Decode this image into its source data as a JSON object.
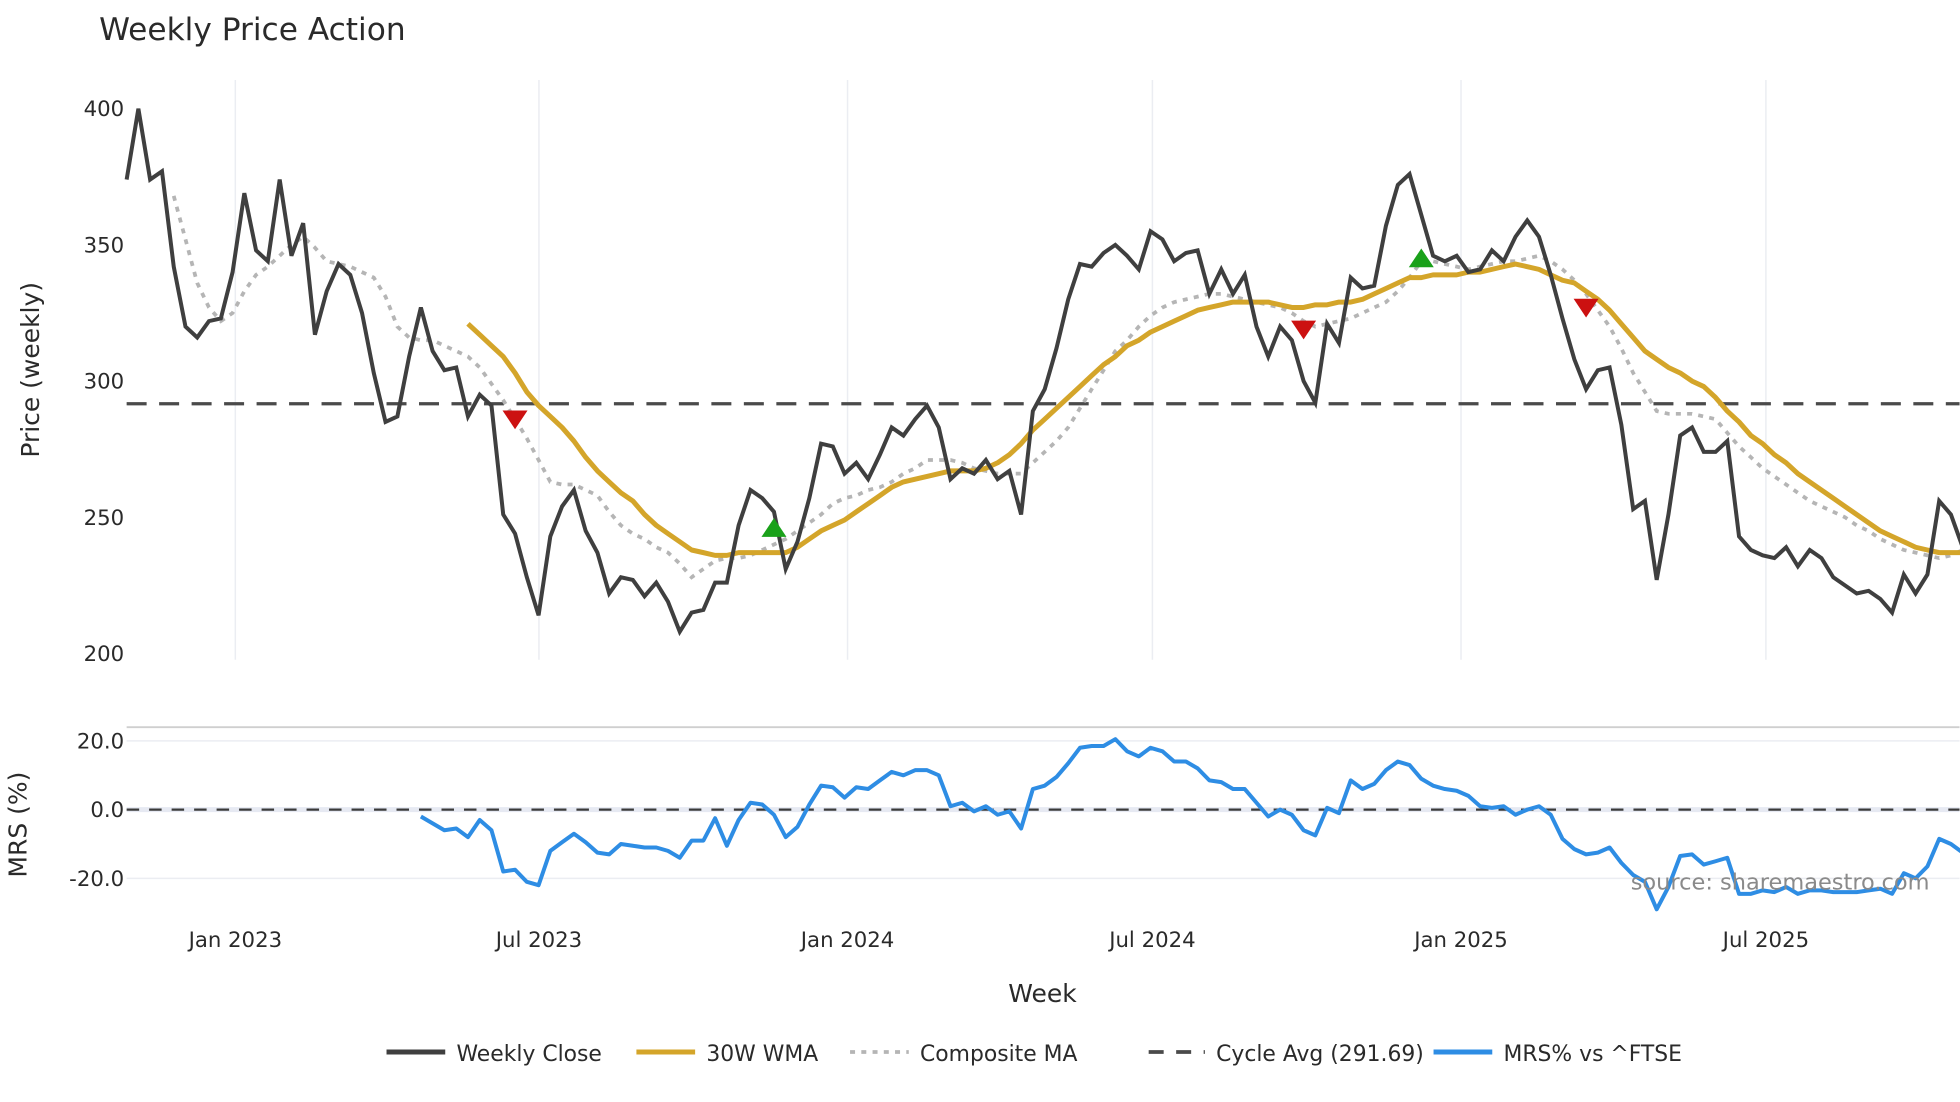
{
  "title": "Weekly Price Action",
  "watermark": "source: sharemaestro.com",
  "colors": {
    "weekly_close": "#3f3f3f",
    "wma": "#d4a52a",
    "composite": "#b5b5b5",
    "cycle_avg": "#4a4a4a",
    "mrs": "#2e8de4",
    "marker_up": "#1aa11a",
    "marker_down": "#cc1111",
    "grid": "#ebedf2"
  },
  "legend": [
    {
      "key": "weekly_close",
      "label": "Weekly Close",
      "style": "solid"
    },
    {
      "key": "wma",
      "label": "30W WMA",
      "style": "solid"
    },
    {
      "key": "composite",
      "label": "Composite MA",
      "style": "dot"
    },
    {
      "key": "cycle_avg",
      "label": "Cycle Avg (291.69)",
      "style": "dash"
    },
    {
      "key": "mrs",
      "label": "MRS% vs ^FTSE",
      "style": "solid"
    }
  ],
  "chart_data": [
    {
      "type": "line",
      "title": "Weekly Price Action",
      "xlabel": "Week",
      "ylabel": "Price (weekly)",
      "ylim": [
        200,
        400
      ],
      "yticks": [
        200,
        250,
        300,
        350,
        400
      ],
      "xticks": [
        "Jan 2023",
        "Jul 2023",
        "Jan 2024",
        "Jul 2024",
        "Jan 2025",
        "Jul 2025"
      ],
      "x_start": "2022-10-31",
      "x_step": "1 week",
      "cycle_avg": 291.69,
      "series": [
        {
          "name": "Weekly Close",
          "start_index": 0,
          "values": [
            374,
            400,
            374,
            377,
            342,
            320,
            316,
            322,
            323,
            340,
            369,
            348,
            344,
            374,
            346,
            358,
            317,
            333,
            343,
            339,
            325,
            303,
            285,
            287,
            309,
            327,
            311,
            304,
            305,
            287,
            295,
            291,
            251,
            244,
            228,
            214,
            243,
            254,
            260,
            245,
            237,
            222,
            228,
            227,
            221,
            226,
            219,
            208,
            215,
            216,
            226,
            226,
            247,
            260,
            257,
            252,
            231,
            241,
            257,
            277,
            276,
            266,
            270,
            264,
            273,
            283,
            280,
            286,
            291,
            283,
            264,
            268,
            266,
            271,
            264,
            267,
            251,
            289,
            297,
            312,
            330,
            343,
            342,
            347,
            350,
            346,
            341,
            355,
            352,
            344,
            347,
            348,
            332,
            341,
            332,
            339,
            320,
            309,
            320,
            315,
            300,
            292,
            321,
            314,
            338,
            334,
            335,
            357,
            372,
            376,
            361,
            346,
            344,
            346,
            340,
            341,
            348,
            344,
            353,
            359,
            353,
            339,
            323,
            308,
            297,
            304,
            305,
            284,
            253,
            256,
            227,
            251,
            280,
            283,
            274,
            274,
            278,
            243,
            238,
            236,
            235,
            239,
            232,
            238,
            235,
            228,
            225,
            222,
            223,
            220,
            215,
            229,
            222,
            229,
            256,
            251,
            239,
            245
          ]
        },
        {
          "name": "30W WMA",
          "start_index": 29,
          "values": [
            321,
            317,
            313,
            309,
            303,
            296,
            291,
            287,
            283,
            278,
            272,
            267,
            263,
            259,
            256,
            251,
            247,
            244,
            241,
            238,
            237,
            236,
            236,
            237,
            237,
            237,
            237,
            237,
            239,
            242,
            245,
            247,
            249,
            252,
            255,
            258,
            261,
            263,
            264,
            265,
            266,
            267,
            267,
            267,
            268,
            270,
            273,
            277,
            282,
            286,
            290,
            294,
            298,
            302,
            306,
            309,
            313,
            315,
            318,
            320,
            322,
            324,
            326,
            327,
            328,
            329,
            329,
            329,
            329,
            328,
            327,
            327,
            328,
            328,
            329,
            329,
            330,
            332,
            334,
            336,
            338,
            338,
            339,
            339,
            339,
            340,
            340,
            341,
            342,
            343,
            342,
            341,
            339,
            337,
            336,
            333,
            330,
            326,
            321,
            316,
            311,
            308,
            305,
            303,
            300,
            298,
            294,
            289,
            285,
            280,
            277,
            273,
            270,
            266,
            263,
            260,
            257,
            254,
            251,
            248,
            245,
            243,
            241,
            239,
            238,
            237,
            237,
            237
          ]
        },
        {
          "name": "Composite MA",
          "start_index": 4,
          "values": [
            368,
            352,
            336,
            327,
            322,
            325,
            333,
            339,
            342,
            346,
            350,
            353,
            349,
            344,
            343,
            342,
            340,
            338,
            331,
            320,
            316,
            315,
            315,
            313,
            311,
            309,
            305,
            299,
            293,
            286,
            279,
            271,
            263,
            262,
            262,
            260,
            258,
            252,
            247,
            244,
            242,
            239,
            237,
            233,
            228,
            231,
            234,
            235,
            235,
            236,
            238,
            240,
            242,
            245,
            248,
            251,
            255,
            257,
            258,
            260,
            261,
            263,
            266,
            268,
            271,
            271,
            271,
            270,
            268,
            267,
            266,
            266,
            266,
            270,
            274,
            278,
            283,
            290,
            297,
            304,
            311,
            315,
            320,
            324,
            327,
            329,
            330,
            331,
            332,
            332,
            331,
            330,
            329,
            328,
            327,
            325,
            322,
            320,
            321,
            322,
            323,
            325,
            327,
            329,
            333,
            338,
            344,
            344,
            343,
            342,
            341,
            342,
            343,
            344,
            344,
            345,
            346,
            344,
            341,
            337,
            332,
            326,
            320,
            312,
            303,
            296,
            289,
            288,
            288,
            288,
            287,
            286,
            281,
            276,
            272,
            268,
            265,
            262,
            259,
            256,
            254,
            252,
            250,
            247,
            245,
            242,
            240,
            238,
            237,
            236,
            235,
            236,
            238,
            240
          ]
        },
        {
          "name": "Cycle Avg (291.69)",
          "constant": 291.69
        }
      ],
      "markers": [
        {
          "type": "sell",
          "shape": "triangle-down",
          "index": 33,
          "value": 286
        },
        {
          "type": "buy",
          "shape": "triangle-up",
          "index": 55,
          "value": 246
        },
        {
          "type": "sell",
          "shape": "triangle-down",
          "index": 100,
          "value": 319
        },
        {
          "type": "buy",
          "shape": "triangle-up",
          "index": 110,
          "value": 345
        },
        {
          "type": "sell",
          "shape": "triangle-down",
          "index": 124,
          "value": 327
        }
      ],
      "grid": true,
      "legend_position": "bottom"
    },
    {
      "type": "line",
      "ylabel": "MRS (%)",
      "ylim": [
        -30,
        24
      ],
      "yticks": [
        "-20.0",
        "0.0",
        "20.0"
      ],
      "ytick_values": [
        -20,
        0,
        20
      ],
      "zero_line": "dashed",
      "series": [
        {
          "name": "MRS% vs ^FTSE",
          "start_index": 25,
          "values": [
            -2,
            -4,
            -6,
            -5.5,
            -8,
            -3,
            -6,
            -18,
            -17.5,
            -21,
            -22,
            -12,
            -9.5,
            -7,
            -9.5,
            -12.5,
            -13,
            -10,
            -10.5,
            -11,
            -11,
            -12,
            -14,
            -9,
            -9,
            -2.5,
            -10.5,
            -3,
            2,
            1.5,
            -1.5,
            -8,
            -5,
            1.5,
            7,
            6.5,
            3.5,
            6.5,
            6,
            8.5,
            11,
            10,
            11.5,
            11.5,
            10,
            1,
            2,
            -0.5,
            1,
            -1.5,
            -0.5,
            -5.5,
            6,
            7,
            9.5,
            13.5,
            18,
            18.5,
            18.5,
            20.5,
            17,
            15.5,
            18,
            17,
            14,
            14,
            12,
            8.5,
            8,
            6,
            6,
            2,
            -2,
            0,
            -1.5,
            -6,
            -7.5,
            0.5,
            -1,
            8.5,
            6,
            7.5,
            11.5,
            14,
            13,
            9,
            7,
            6,
            5.5,
            4,
            1,
            0.5,
            1,
            -1.5,
            0,
            1,
            -1.5,
            -8.5,
            -11.5,
            -13,
            -12.5,
            -11,
            -15.5,
            -19,
            -21,
            -29,
            -22.5,
            -13.5,
            -13,
            -16,
            -15,
            -14,
            -24.5,
            -24.5,
            -23.5,
            -24,
            -22.5,
            -24.5,
            -23.5,
            -23.5,
            -24,
            -24,
            -24,
            -23.5,
            -23,
            -24.5,
            -18.5,
            -20,
            -16.5,
            -8.5,
            -10,
            -12.5,
            -11.5
          ]
        }
      ]
    }
  ],
  "axes": {
    "x_title": "Week",
    "y_title_top": "Price (weekly)",
    "y_title_bottom": "MRS (%)"
  }
}
